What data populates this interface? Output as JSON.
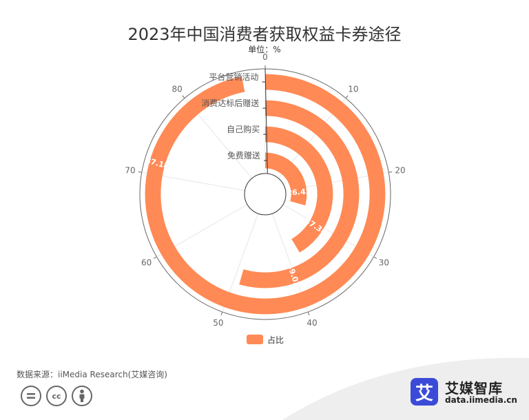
{
  "title": "2023年中国消费者获取权益卡券途径",
  "subtitle": "单位：%",
  "chart_data": {
    "type": "polar-bar",
    "angle_axis": {
      "min": 0,
      "max": 90,
      "ticks": [
        0,
        10,
        20,
        30,
        40,
        50,
        60,
        70,
        80
      ],
      "clockwise": true
    },
    "categories": [
      "免费赠送",
      "自己购买",
      "消费达标后赠送",
      "平台营销活动"
    ],
    "series": [
      {
        "name": "占比",
        "values": [
          26.42,
          37.38,
          49.02,
          87.18
        ],
        "labels": [
          "26.42",
          "37.38",
          "49.02",
          "87.18"
        ]
      }
    ],
    "color": "#ff8a55"
  },
  "legend": {
    "label": "占比",
    "color": "#ff8a55"
  },
  "source": "数据来源：iiMedia Research(艾媒咨询)",
  "license_icons": [
    "equals-icon",
    "cc-icon",
    "person-icon"
  ],
  "brand": {
    "logo_char": "艾",
    "name": "艾媒智库",
    "url": "data.iimedia.cn"
  }
}
